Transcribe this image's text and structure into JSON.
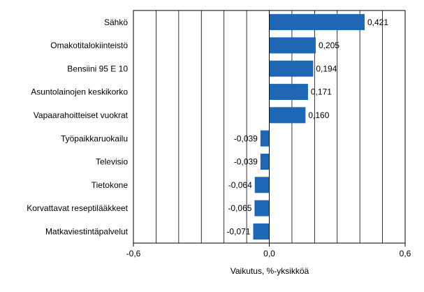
{
  "chart_data": {
    "type": "bar",
    "orientation": "horizontal",
    "title": "",
    "xlabel": "Vaikutus, %-yksikköä",
    "ylabel": "",
    "xlim": [
      -0.6,
      0.6
    ],
    "grid": true,
    "categories": [
      "Sähkö",
      "Omakotitalokiinteistö",
      "Bensiini 95 E 10",
      "Asuntolainojen keskikorko",
      "Vapaarahoitteiset vuokrat",
      "Työpaikkaruokailu",
      "Televisio",
      "Tietokone",
      "Korvattavat reseptilääkkeet",
      "Matkaviestintäpalvelut"
    ],
    "values": [
      0.421,
      0.205,
      0.194,
      0.171,
      0.16,
      -0.039,
      -0.039,
      -0.064,
      -0.065,
      -0.071
    ],
    "value_labels": [
      "0,421",
      "0,205",
      "0,194",
      "0,171",
      "0,160",
      "-0,039",
      "-0,039",
      "-0,064",
      "-0,065",
      "-0,071"
    ],
    "ticks": [
      {
        "value": -0.6,
        "label": "-0,6"
      },
      {
        "value": 0.0,
        "label": "0,0"
      },
      {
        "value": 0.6,
        "label": "0,6"
      }
    ],
    "bar_color": "#1f66b5"
  }
}
